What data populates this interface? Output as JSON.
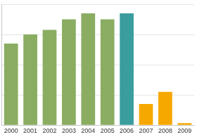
{
  "chart_data": {
    "type": "bar",
    "categories": [
      "2000",
      "2001",
      "2002",
      "2003",
      "2004",
      "2005",
      "2006",
      "2007",
      "2008",
      "2009"
    ],
    "values": [
      2.7,
      3.0,
      3.15,
      3.5,
      3.7,
      3.5,
      3.7,
      0.7,
      1.1,
      0.07
    ],
    "colors": [
      "#8aad62",
      "#8aad62",
      "#8aad62",
      "#8aad62",
      "#8aad62",
      "#8aad62",
      "#3a9d9e",
      "#f6a800",
      "#f6a800",
      "#f6a800"
    ],
    "ylim": [
      0,
      4
    ],
    "yticks": [
      0,
      1,
      2,
      3,
      4
    ],
    "grid": true,
    "tick_labels": "x"
  }
}
